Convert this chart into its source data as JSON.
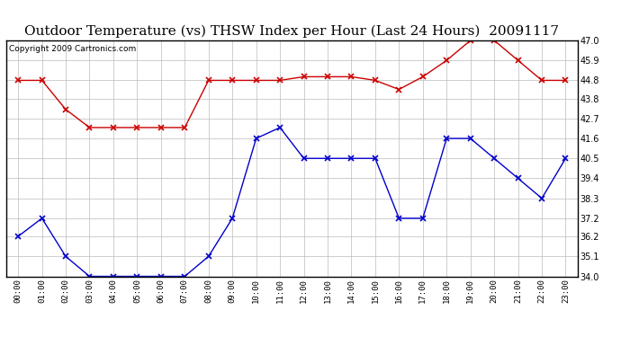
{
  "title": "Outdoor Temperature (vs) THSW Index per Hour (Last 24 Hours)  20091117",
  "copyright": "Copyright 2009 Cartronics.com",
  "hours": [
    "00:00",
    "01:00",
    "02:00",
    "03:00",
    "04:00",
    "05:00",
    "06:00",
    "07:00",
    "08:00",
    "09:00",
    "10:00",
    "11:00",
    "12:00",
    "13:00",
    "14:00",
    "15:00",
    "16:00",
    "17:00",
    "18:00",
    "19:00",
    "20:00",
    "21:00",
    "22:00",
    "23:00"
  ],
  "temp_red": [
    44.8,
    44.8,
    43.2,
    42.2,
    42.2,
    42.2,
    42.2,
    42.2,
    44.8,
    44.8,
    44.8,
    44.8,
    45.0,
    45.0,
    45.0,
    44.8,
    44.3,
    45.0,
    45.9,
    47.0,
    47.0,
    45.9,
    44.8,
    44.8
  ],
  "temp_blue": [
    36.2,
    37.2,
    35.1,
    34.0,
    34.0,
    34.0,
    34.0,
    34.0,
    35.1,
    37.2,
    41.6,
    42.2,
    40.5,
    40.5,
    40.5,
    40.5,
    37.2,
    37.2,
    41.6,
    41.6,
    40.5,
    39.4,
    38.3,
    40.5
  ],
  "red_color": "#cc0000",
  "blue_color": "#0000cc",
  "bg_color": "#ffffff",
  "grid_color": "#bbbbbb",
  "ylim_min": 34.0,
  "ylim_max": 47.0,
  "ytick_values": [
    34.0,
    35.1,
    36.2,
    37.2,
    38.3,
    39.4,
    40.5,
    41.6,
    42.7,
    43.8,
    44.8,
    45.9,
    47.0
  ],
  "title_fontsize": 11,
  "copyright_fontsize": 6.5,
  "marker": "x",
  "markersize": 4,
  "linewidth": 1.0
}
